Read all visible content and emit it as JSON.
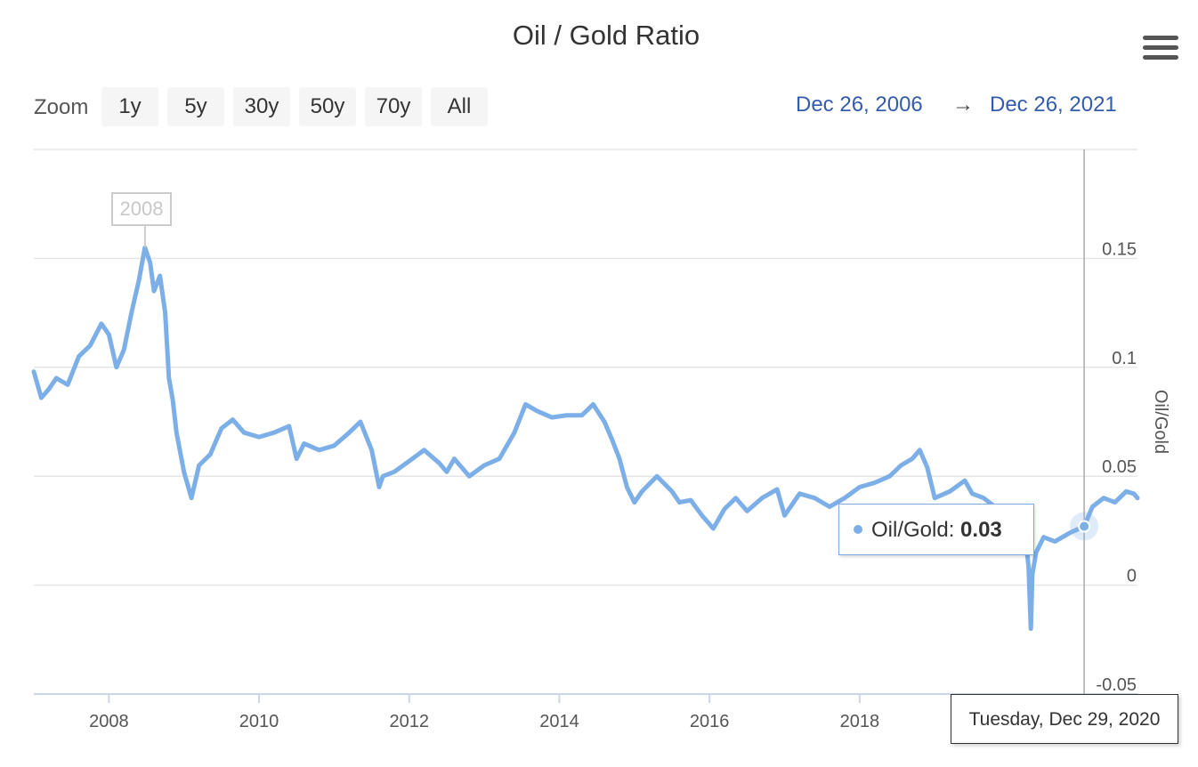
{
  "chart_data": {
    "type": "line",
    "title": "Oil / Gold Ratio",
    "ylabel": "Oil/Gold",
    "xlabel": "",
    "xlim": [
      2007.0,
      2021.7
    ],
    "ylim": [
      -0.05,
      0.2
    ],
    "y_ticks": [
      "0.15",
      "0.1",
      "0.05",
      "0",
      "-0.05"
    ],
    "y_tick_values": [
      0.15,
      0.1,
      0.05,
      0,
      -0.05
    ],
    "x_ticks": [
      "2008",
      "2010",
      "2012",
      "2014",
      "2016",
      "2018"
    ],
    "x_tick_values": [
      2008,
      2010,
      2012,
      2014,
      2016,
      2018
    ],
    "series": [
      {
        "name": "Oil/Gold",
        "color": "#7caee8",
        "x": [
          2007.0,
          2007.1,
          2007.2,
          2007.3,
          2007.45,
          2007.6,
          2007.75,
          2007.9,
          2008.0,
          2008.1,
          2008.2,
          2008.3,
          2008.4,
          2008.48,
          2008.55,
          2008.6,
          2008.68,
          2008.75,
          2008.8,
          2008.85,
          2008.9,
          2009.0,
          2009.1,
          2009.2,
          2009.35,
          2009.5,
          2009.65,
          2009.8,
          2010.0,
          2010.2,
          2010.4,
          2010.5,
          2010.6,
          2010.8,
          2011.0,
          2011.2,
          2011.35,
          2011.5,
          2011.6,
          2011.65,
          2011.8,
          2012.0,
          2012.2,
          2012.4,
          2012.5,
          2012.6,
          2012.8,
          2013.0,
          2013.2,
          2013.4,
          2013.55,
          2013.7,
          2013.9,
          2014.1,
          2014.3,
          2014.45,
          2014.6,
          2014.7,
          2014.8,
          2014.9,
          2015.0,
          2015.1,
          2015.3,
          2015.5,
          2015.6,
          2015.75,
          2015.9,
          2016.05,
          2016.2,
          2016.35,
          2016.5,
          2016.7,
          2016.9,
          2017.0,
          2017.2,
          2017.4,
          2017.6,
          2017.8,
          2018.0,
          2018.2,
          2018.4,
          2018.55,
          2018.7,
          2018.8,
          2018.9,
          2019.0,
          2019.2,
          2019.4,
          2019.5,
          2019.65,
          2019.8,
          2020.0,
          2020.1,
          2020.2,
          2020.25,
          2020.28,
          2020.3,
          2020.35,
          2020.45,
          2020.6,
          2020.8,
          2020.99,
          2021.1,
          2021.25,
          2021.4,
          2021.55,
          2021.65,
          2021.7
        ],
        "y": [
          0.098,
          0.086,
          0.09,
          0.095,
          0.092,
          0.105,
          0.11,
          0.12,
          0.115,
          0.1,
          0.108,
          0.125,
          0.14,
          0.155,
          0.148,
          0.135,
          0.142,
          0.125,
          0.095,
          0.085,
          0.07,
          0.052,
          0.04,
          0.055,
          0.06,
          0.072,
          0.076,
          0.07,
          0.068,
          0.07,
          0.073,
          0.058,
          0.065,
          0.062,
          0.064,
          0.07,
          0.075,
          0.062,
          0.045,
          0.05,
          0.052,
          0.057,
          0.062,
          0.056,
          0.052,
          0.058,
          0.05,
          0.055,
          0.058,
          0.07,
          0.083,
          0.08,
          0.077,
          0.078,
          0.078,
          0.083,
          0.075,
          0.067,
          0.058,
          0.045,
          0.038,
          0.043,
          0.05,
          0.043,
          0.038,
          0.039,
          0.032,
          0.026,
          0.035,
          0.04,
          0.034,
          0.04,
          0.044,
          0.032,
          0.042,
          0.04,
          0.036,
          0.04,
          0.045,
          0.047,
          0.05,
          0.055,
          0.058,
          0.062,
          0.054,
          0.04,
          0.043,
          0.048,
          0.042,
          0.04,
          0.036,
          0.035,
          0.033,
          0.025,
          0.008,
          -0.02,
          0.005,
          0.015,
          0.022,
          0.02,
          0.024,
          0.027,
          0.036,
          0.04,
          0.038,
          0.043,
          0.042,
          0.04
        ]
      }
    ],
    "flag": {
      "x": 2008.48,
      "y": 0.155,
      "label": "2008"
    },
    "legend": "none",
    "grid": true
  },
  "ui": {
    "zoom_label": "Zoom",
    "zoom_buttons": [
      "1y",
      "5y",
      "30y",
      "50y",
      "70y",
      "All"
    ],
    "range_from": "Dec 26, 2006",
    "range_arrow": "→",
    "range_to": "Dec 26, 2021",
    "menu_icon": "hamburger-menu-icon"
  },
  "tooltip": {
    "series": "Oil/Gold:",
    "value": "0.03",
    "date": "Tuesday, Dec 29, 2020",
    "x": 2020.99,
    "y": 0.027
  }
}
